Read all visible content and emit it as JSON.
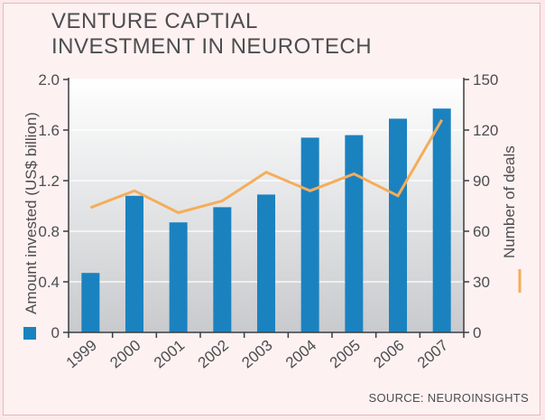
{
  "chart_data": {
    "type": "bar+line",
    "title": "VENTURE CAPTIAL INVESTMENT IN NEUROTECH",
    "title_lines": [
      "VENTURE CAPTIAL",
      "INVESTMENT IN NEUROTECH"
    ],
    "categories": [
      "1999",
      "2000",
      "2001",
      "2002",
      "2003",
      "2004",
      "2005",
      "2006",
      "2007"
    ],
    "series": [
      {
        "name": "Amount invested (US$ billion)",
        "type": "bar",
        "axis": "left",
        "color": "#1b82c0",
        "values": [
          0.47,
          1.08,
          0.87,
          0.99,
          1.09,
          1.54,
          1.56,
          1.69,
          1.77
        ]
      },
      {
        "name": "Number of deals",
        "type": "line",
        "axis": "right",
        "color": "#f5ad5a",
        "values": [
          74,
          84,
          71,
          78,
          95,
          84,
          94,
          81,
          126
        ]
      }
    ],
    "ylabel": "Amount invested (US$ billion)",
    "y2label": "Number of deals",
    "ylim": [
      0,
      2.0
    ],
    "yticks": [
      "0",
      "0.4",
      "0.8",
      "1.2",
      "1.6",
      "2.0"
    ],
    "y2lim": [
      0,
      150
    ],
    "y2ticks": [
      "0",
      "30",
      "60",
      "90",
      "120",
      "150"
    ],
    "grid": true,
    "legend": "inline with axis labels",
    "source": "SOURCE: NEUROINSIGHTS",
    "colors": {
      "background": "#fdf1f2",
      "plot_top": "#ffffff",
      "plot_bottom": "#c8cacd",
      "grid": "#ffffff",
      "axis": "#3c3c3e",
      "text": "#4d4d4f"
    }
  }
}
